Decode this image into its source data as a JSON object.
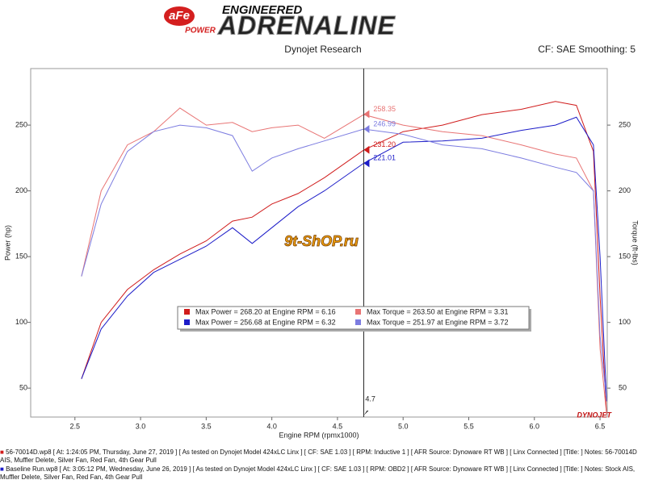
{
  "header": {
    "logo": "aFe",
    "logo_sub": "POWER",
    "tagline": "ENGINEERED",
    "brand": "ADRENALINE",
    "source": "Dynojet Research",
    "correction": "CF: SAE Smoothing: 5",
    "watermark": "9t-ShOP.ru",
    "maker": "DYNOJET"
  },
  "chart_data": {
    "type": "line",
    "xlabel": "Engine RPM (rpmx1000)",
    "ylabel": "Power (hp)",
    "y2label": "Torque (ft-lbs)",
    "x": [
      2.55,
      2.7,
      2.9,
      3.1,
      3.3,
      3.5,
      3.7,
      3.85,
      4.0,
      4.2,
      4.4,
      4.7,
      5.0,
      5.3,
      5.6,
      5.9,
      6.16,
      6.32,
      6.45,
      6.5,
      6.55
    ],
    "series": [
      {
        "name": "Max Power = 268.20 at Engine RPM = 6.16",
        "color": "#d01c1c",
        "values": [
          57,
          100,
          125,
          140,
          152,
          162,
          177,
          180,
          190,
          198,
          210,
          231,
          245,
          250,
          258,
          262,
          268,
          265,
          230,
          120,
          30
        ]
      },
      {
        "name": "Max Power = 256.68 at Engine RPM = 6.32",
        "color": "#1c1cc8",
        "values": [
          57,
          95,
          120,
          138,
          148,
          158,
          172,
          160,
          172,
          188,
          200,
          221,
          237,
          238,
          240,
          246,
          250,
          256,
          235,
          150,
          40
        ]
      },
      {
        "name": "Max Torque = 263.50 at Engine RPM = 3.31",
        "color": "#e87474",
        "axis": "y2",
        "values": [
          135,
          200,
          235,
          245,
          263,
          250,
          252,
          245,
          248,
          250,
          240,
          258,
          250,
          245,
          242,
          235,
          228,
          225,
          200,
          80,
          30
        ]
      },
      {
        "name": "Max Torque = 251.97 at Engine RPM = 3.72",
        "color": "#7c7ce0",
        "axis": "y2",
        "values": [
          135,
          190,
          230,
          245,
          250,
          248,
          242,
          215,
          225,
          232,
          238,
          247,
          243,
          235,
          232,
          225,
          218,
          214,
          200,
          90,
          40
        ]
      }
    ],
    "cursor": {
      "x": 4.7,
      "values": [
        231.2,
        221.01,
        258.35,
        246.99
      ],
      "value_labels": [
        "231.20",
        "221.01",
        "258.35",
        "246.99"
      ]
    },
    "xlim": [
      2.163,
      6.555
    ],
    "xticks": [
      2.5,
      {
        "value": 3,
        "label": "3.0"
      },
      3.5,
      {
        "value": 4,
        "label": "4.0"
      },
      4.5,
      {
        "value": 5,
        "label": "5.0"
      },
      5.5,
      {
        "value": 6,
        "label": "6.0"
      },
      6.5
    ],
    "ylim": [
      28,
      293
    ],
    "yticks": [
      50,
      100,
      150,
      200,
      250
    ],
    "y2lim": [
      28,
      293
    ],
    "y2ticks": [
      50,
      100,
      150,
      200,
      250
    ]
  },
  "footnotes": [
    "56-70014D.wp8 [ At: 1:24:05 PM, Thursday, June 27, 2019 ] [ As tested on Dynojet Model 424xLC Linx ] [ CF: SAE 1.03 ] [ RPM: Inductive 1 ] [ AFR Source: Dynoware RT WB ] [ Linx Connected ] [Title: ]  Notes: 56-70014D AIS, Muffler Delete, Silver Fan, Red Fan, 4th Gear Pull",
    "Baseline Run.wp8 [ At: 3:05:12 PM, Wednesday, June 26, 2019 ] [ As tested on Dynojet Model 424xLC Linx ] [ CF: SAE 1.03 ] [ RPM: OBD2 ] [ AFR Source: Dynoware RT WB ] [ Linx Connected ] [Title: ]  Notes: Stock AIS, Muffler Delete, Silver Fan, Red Fan, 4th Gear Pull"
  ]
}
